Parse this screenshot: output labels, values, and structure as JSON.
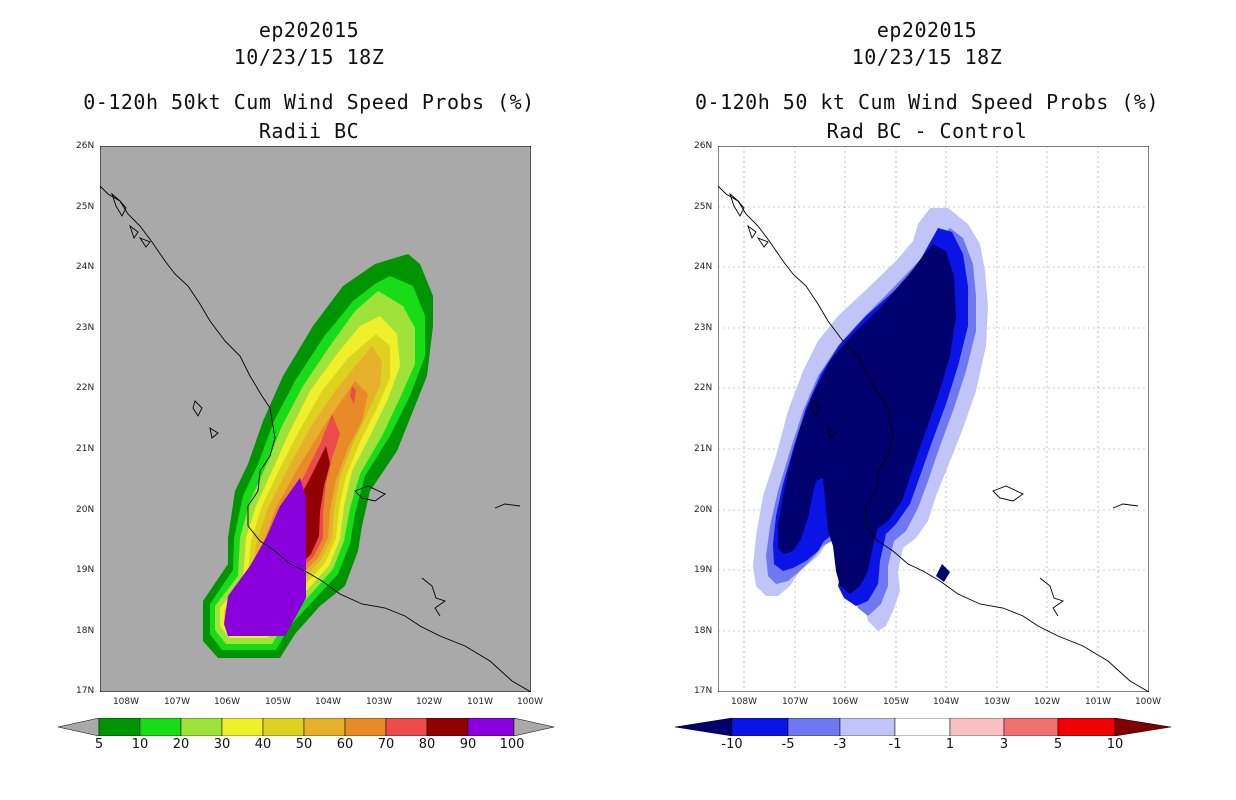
{
  "left": {
    "line1": "ep202015",
    "line2": "10/23/15 18Z",
    "line3": "0-120h 50kt Cum Wind Speed Probs (%)",
    "line4": "Radii BC",
    "background": "#a9a9a9",
    "colorbar": {
      "labels": [
        "5",
        "10",
        "20",
        "30",
        "40",
        "50",
        "60",
        "70",
        "80",
        "90",
        "100"
      ],
      "colors": [
        "#009400",
        "#19dc19",
        "#9fe33a",
        "#f0f02a",
        "#dcd21f",
        "#e6b02a",
        "#e88a28",
        "#ec4b4b",
        "#920000",
        "#8a00dc"
      ]
    }
  },
  "right": {
    "line1": "ep202015",
    "line2": "10/23/15 18Z",
    "line3": "0-120h 50 kt Cum Wind Speed Probs (%)",
    "line4": "Rad BC - Control",
    "background": "#ffffff",
    "colorbar": {
      "labels": [
        "-10",
        "-5",
        "-3",
        "-1",
        "1",
        "3",
        "5",
        "10"
      ],
      "colors": [
        "#00006e",
        "#0a14e6",
        "#6e78f0",
        "#c0c4f6",
        "#ffffff",
        "#f8c0c0",
        "#f07070",
        "#f00000",
        "#800000"
      ]
    }
  },
  "axes": {
    "lat_labels": [
      "26N",
      "25N",
      "24N",
      "23N",
      "22N",
      "21N",
      "20N",
      "19N",
      "18N",
      "17N"
    ],
    "lon_labels": [
      "108W",
      "107W",
      "106W",
      "105W",
      "104W",
      "103W",
      "102W",
      "101W",
      "100W"
    ]
  }
}
